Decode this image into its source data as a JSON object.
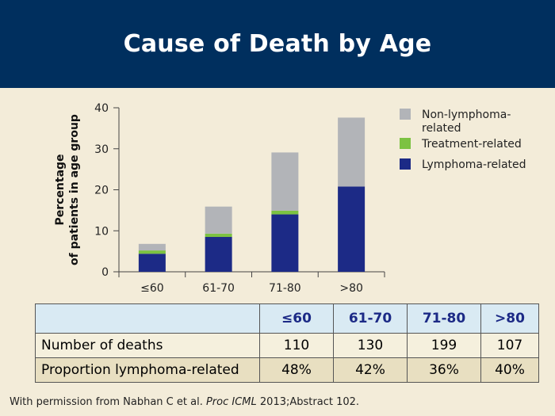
{
  "title": "Cause of Death by Age",
  "chart_data": {
    "type": "bar",
    "stacked": true,
    "categories": [
      "≤60",
      "61-70",
      "71-80",
      ">80"
    ],
    "series": [
      {
        "name": "Lymphoma-related",
        "color": "#1c2a86",
        "values": [
          4.4,
          8.5,
          14.0,
          20.8
        ]
      },
      {
        "name": "Treatment-related",
        "color": "#7cc242",
        "values": [
          0.8,
          0.8,
          0.9,
          0.0
        ]
      },
      {
        "name": "Non-lymphoma-related",
        "color": "#b2b4b8",
        "values": [
          1.6,
          6.6,
          14.2,
          16.8
        ]
      }
    ],
    "ylabel_line1": "Percentage",
    "ylabel_line2": "of patients in age group",
    "ylim": [
      0,
      40
    ],
    "yticks": [
      0,
      10,
      20,
      30,
      40
    ],
    "legend": {
      "position": "right",
      "entries": [
        {
          "lines": [
            "Non-lymphoma-",
            "related"
          ],
          "color": "#b2b4b8"
        },
        {
          "lines": [
            "Treatment-related"
          ],
          "color": "#7cc242"
        },
        {
          "lines": [
            "Lymphoma-related"
          ],
          "color": "#1c2a86"
        }
      ]
    }
  },
  "table": {
    "headers": [
      "≤60",
      "61-70",
      "71-80",
      ">80"
    ],
    "rows": [
      {
        "label": "Number of deaths",
        "values": [
          "110",
          "130",
          "199",
          "107"
        ]
      },
      {
        "label": "Proportion lymphoma-related",
        "values": [
          "48%",
          "42%",
          "36%",
          "40%"
        ]
      }
    ]
  },
  "footnote": {
    "prefix": "With permission from Nabhan C et al. ",
    "journal": "Proc ICML",
    "suffix": " 2013;Abstract 102."
  }
}
